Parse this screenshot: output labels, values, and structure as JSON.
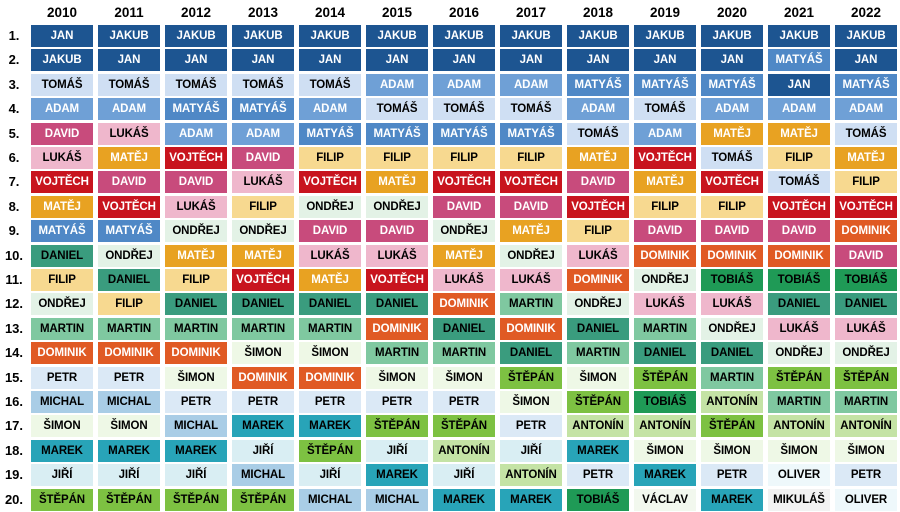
{
  "chart_data": {
    "type": "table",
    "years": [
      "2010",
      "2011",
      "2012",
      "2013",
      "2014",
      "2015",
      "2016",
      "2017",
      "2018",
      "2019",
      "2020",
      "2021",
      "2022"
    ],
    "ranks": [
      "1.",
      "2.",
      "3.",
      "4.",
      "5.",
      "6.",
      "7.",
      "8.",
      "9.",
      "10.",
      "11.",
      "12.",
      "13.",
      "14.",
      "15.",
      "16.",
      "17.",
      "18.",
      "19.",
      "20."
    ],
    "rows": [
      [
        "JAN",
        "JAKUB",
        "JAKUB",
        "JAKUB",
        "JAKUB",
        "JAKUB",
        "JAKUB",
        "JAKUB",
        "JAKUB",
        "JAKUB",
        "JAKUB",
        "JAKUB",
        "JAKUB"
      ],
      [
        "JAKUB",
        "JAN",
        "JAN",
        "JAN",
        "JAN",
        "JAN",
        "JAN",
        "JAN",
        "JAN",
        "JAN",
        "JAN",
        "MATYÁŠ",
        "JAN"
      ],
      [
        "TOMÁŠ",
        "TOMÁŠ",
        "TOMÁŠ",
        "TOMÁŠ",
        "TOMÁŠ",
        "ADAM",
        "ADAM",
        "ADAM",
        "MATYÁŠ",
        "MATYÁŠ",
        "MATYÁŠ",
        "JAN",
        "MATYÁŠ"
      ],
      [
        "ADAM",
        "ADAM",
        "MATYÁŠ",
        "MATYÁŠ",
        "ADAM",
        "TOMÁŠ",
        "TOMÁŠ",
        "TOMÁŠ",
        "ADAM",
        "TOMÁŠ",
        "ADAM",
        "ADAM",
        "ADAM"
      ],
      [
        "DAVID",
        "LUKÁŠ",
        "ADAM",
        "ADAM",
        "MATYÁŠ",
        "MATYÁŠ",
        "MATYÁŠ",
        "MATYÁŠ",
        "TOMÁŠ",
        "ADAM",
        "MATĚJ",
        "MATĚJ",
        "TOMÁŠ"
      ],
      [
        "LUKÁŠ",
        "MATĚJ",
        "VOJTĚCH",
        "DAVID",
        "FILIP",
        "FILIP",
        "FILIP",
        "FILIP",
        "MATĚJ",
        "VOJTĚCH",
        "TOMÁŠ",
        "FILIP",
        "MATĚJ"
      ],
      [
        "VOJTĚCH",
        "DAVID",
        "DAVID",
        "LUKÁŠ",
        "VOJTĚCH",
        "MATĚJ",
        "VOJTĚCH",
        "VOJTĚCH",
        "DAVID",
        "MATĚJ",
        "VOJTĚCH",
        "TOMÁŠ",
        "FILIP"
      ],
      [
        "MATĚJ",
        "VOJTĚCH",
        "LUKÁŠ",
        "FILIP",
        "ONDŘEJ",
        "ONDŘEJ",
        "DAVID",
        "DAVID",
        "VOJTĚCH",
        "FILIP",
        "FILIP",
        "VOJTĚCH",
        "VOJTĚCH"
      ],
      [
        "MATYÁŠ",
        "MATYÁŠ",
        "ONDŘEJ",
        "ONDŘEJ",
        "DAVID",
        "DAVID",
        "ONDŘEJ",
        "MATĚJ",
        "FILIP",
        "DAVID",
        "DAVID",
        "DAVID",
        "DOMINIK"
      ],
      [
        "DANIEL",
        "ONDŘEJ",
        "MATĚJ",
        "MATĚJ",
        "LUKÁŠ",
        "LUKÁŠ",
        "MATĚJ",
        "ONDŘEJ",
        "LUKÁŠ",
        "DOMINIK",
        "DOMINIK",
        "DOMINIK",
        "DAVID"
      ],
      [
        "FILIP",
        "DANIEL",
        "FILIP",
        "VOJTĚCH",
        "MATĚJ",
        "VOJTĚCH",
        "LUKÁŠ",
        "LUKÁŠ",
        "DOMINIK",
        "ONDŘEJ",
        "TOBIÁŠ",
        "TOBIÁŠ",
        "TOBIÁŠ"
      ],
      [
        "ONDŘEJ",
        "FILIP",
        "DANIEL",
        "DANIEL",
        "DANIEL",
        "DANIEL",
        "DOMINIK",
        "MARTIN",
        "ONDŘEJ",
        "LUKÁŠ",
        "LUKÁŠ",
        "DANIEL",
        "DANIEL"
      ],
      [
        "MARTIN",
        "MARTIN",
        "MARTIN",
        "MARTIN",
        "MARTIN",
        "DOMINIK",
        "DANIEL",
        "DOMINIK",
        "DANIEL",
        "MARTIN",
        "ONDŘEJ",
        "LUKÁŠ",
        "LUKÁŠ"
      ],
      [
        "DOMINIK",
        "DOMINIK",
        "DOMINIK",
        "ŠIMON",
        "ŠIMON",
        "MARTIN",
        "MARTIN",
        "DANIEL",
        "MARTIN",
        "DANIEL",
        "DANIEL",
        "ONDŘEJ",
        "ONDŘEJ"
      ],
      [
        "PETR",
        "PETR",
        "ŠIMON",
        "DOMINIK",
        "DOMINIK",
        "ŠIMON",
        "ŠIMON",
        "ŠTĚPÁN",
        "ŠIMON",
        "ŠTĚPÁN",
        "MARTIN",
        "ŠTĚPÁN",
        "ŠTĚPÁN"
      ],
      [
        "MICHAL",
        "MICHAL",
        "PETR",
        "PETR",
        "PETR",
        "PETR",
        "PETR",
        "ŠIMON",
        "ŠTĚPÁN",
        "TOBIÁŠ",
        "ANTONÍN",
        "MARTIN",
        "MARTIN"
      ],
      [
        "ŠIMON",
        "ŠIMON",
        "MICHAL",
        "MAREK",
        "MAREK",
        "ŠTĚPÁN",
        "ŠTĚPÁN",
        "PETR",
        "ANTONÍN",
        "ANTONÍN",
        "ŠTĚPÁN",
        "ANTONÍN",
        "ANTONÍN"
      ],
      [
        "MAREK",
        "MAREK",
        "MAREK",
        "JIŘÍ",
        "ŠTĚPÁN",
        "JIŘÍ",
        "ANTONÍN",
        "JIŘÍ",
        "MAREK",
        "ŠIMON",
        "ŠIMON",
        "ŠIMON",
        "ŠIMON"
      ],
      [
        "JIŘÍ",
        "JIŘÍ",
        "JIŘÍ",
        "MICHAL",
        "JIŘÍ",
        "MAREK",
        "JIŘÍ",
        "ANTONÍN",
        "PETR",
        "MAREK",
        "PETR",
        "OLIVER",
        "PETR"
      ],
      [
        "ŠTĚPÁN",
        "ŠTĚPÁN",
        "ŠTĚPÁN",
        "ŠTĚPÁN",
        "MICHAL",
        "MICHAL",
        "MAREK",
        "MAREK",
        "TOBIÁŠ",
        "VÁCLAV",
        "MAREK",
        "MIKULÁŠ",
        "OLIVER"
      ]
    ],
    "colors": {
      "JAN": {
        "bg": "#1d5591",
        "fg": "#ffffff"
      },
      "JAKUB": {
        "bg": "#1d5591",
        "fg": "#ffffff"
      },
      "MATYÁŠ": {
        "bg": "#4f88c6",
        "fg": "#ffffff"
      },
      "ADAM": {
        "bg": "#6fa0d6",
        "fg": "#ffffff"
      },
      "TOMÁŠ": {
        "bg": "#cfdff3",
        "fg": "#000000"
      },
      "DAVID": {
        "bg": "#c84b7c",
        "fg": "#ffffff"
      },
      "LUKÁŠ": {
        "bg": "#efb7cc",
        "fg": "#000000"
      },
      "VOJTĚCH": {
        "bg": "#c8141e",
        "fg": "#ffffff"
      },
      "MATĚJ": {
        "bg": "#e8a222",
        "fg": "#ffffff"
      },
      "FILIP": {
        "bg": "#f7d990",
        "fg": "#000000"
      },
      "ONDŘEJ": {
        "bg": "#e3f2e6",
        "fg": "#000000"
      },
      "DANIEL": {
        "bg": "#3a9c7e",
        "fg": "#000000"
      },
      "MARTIN": {
        "bg": "#7fc8a0",
        "fg": "#000000"
      },
      "DOMINIK": {
        "bg": "#e05a24",
        "fg": "#ffffff"
      },
      "TOBIÁŠ": {
        "bg": "#1f9a56",
        "fg": "#000000"
      },
      "ŠIMON": {
        "bg": "#eef8e6",
        "fg": "#000000"
      },
      "PETR": {
        "bg": "#dbe9f6",
        "fg": "#000000"
      },
      "MICHAL": {
        "bg": "#a9cde6",
        "fg": "#000000"
      },
      "ŠTĚPÁN": {
        "bg": "#7dc142",
        "fg": "#000000"
      },
      "ANTONÍN": {
        "bg": "#c4e3a5",
        "fg": "#000000"
      },
      "MAREK": {
        "bg": "#28a4b8",
        "fg": "#000000"
      },
      "JIŘÍ": {
        "bg": "#d9eef3",
        "fg": "#000000"
      },
      "OLIVER": {
        "bg": "#eef8fb",
        "fg": "#000000"
      },
      "MIKULÁŠ": {
        "bg": "#f2f2f2",
        "fg": "#000000"
      },
      "VÁCLAV": {
        "bg": "#f2f8ee",
        "fg": "#000000"
      }
    }
  }
}
